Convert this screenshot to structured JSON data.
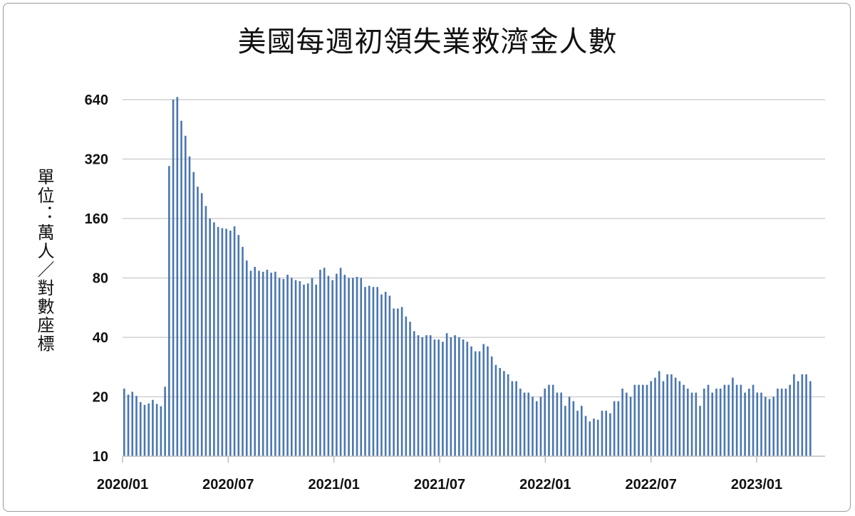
{
  "chart_data": {
    "type": "bar",
    "title": "美國每週初領失業救濟金人數",
    "ylabel": "單位：萬人／對數座標",
    "xlabel": "",
    "yscale": "log2",
    "ylim": [
      10,
      640
    ],
    "yticks": [
      "10",
      "20",
      "40",
      "80",
      "160",
      "320",
      "640"
    ],
    "xticks": [
      "2020/01",
      "2020/07",
      "2021/01",
      "2021/07",
      "2022/01",
      "2022/07",
      "2023/01"
    ],
    "grid": true,
    "bar_color": "#4a76b1",
    "values": [
      22.0,
      20.5,
      21.2,
      20.2,
      18.8,
      18.2,
      18.5,
      19.3,
      18.4,
      17.9,
      22.5,
      295,
      640,
      660,
      500,
      420,
      330,
      275,
      232,
      215,
      185,
      160,
      153,
      145,
      143,
      142,
      139,
      146,
      132,
      115,
      98,
      87,
      91,
      87,
      86,
      88,
      85,
      86,
      80,
      79,
      83,
      80,
      78,
      77,
      74,
      75,
      80,
      74,
      88,
      90,
      82,
      78,
      84,
      90,
      83,
      80,
      80,
      81,
      80,
      72,
      73,
      72,
      72,
      66,
      68,
      65,
      56,
      56,
      57,
      51,
      48,
      43,
      41,
      40,
      41,
      41,
      39,
      39,
      38,
      42,
      40,
      41,
      40,
      39,
      38,
      36,
      34,
      34,
      37,
      36,
      32,
      29,
      28,
      27,
      26,
      24,
      24,
      22,
      21,
      21,
      20,
      19,
      20,
      22,
      23,
      23,
      21,
      21,
      18,
      20,
      19,
      17,
      18,
      16,
      15,
      15.5,
      15.3,
      17,
      17,
      16.5,
      19,
      19,
      22,
      21,
      20,
      23,
      23,
      23,
      23,
      24,
      25,
      27,
      24,
      26,
      26,
      25,
      24,
      23,
      22,
      21,
      21,
      18,
      22,
      23,
      21,
      22,
      22,
      23,
      23,
      25,
      23,
      23,
      21,
      22,
      23,
      21,
      21,
      20,
      19.5,
      20,
      22,
      22,
      22,
      23,
      26,
      24,
      26,
      26,
      24
    ]
  }
}
